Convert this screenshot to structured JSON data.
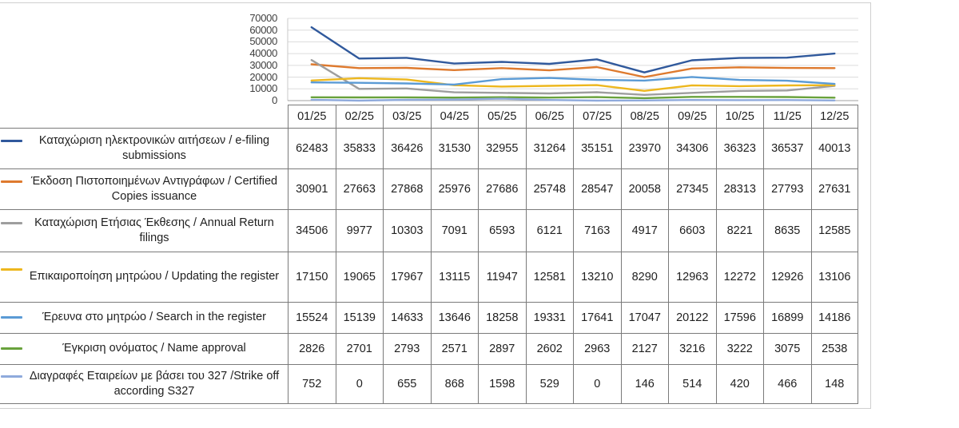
{
  "chart_data": {
    "type": "line",
    "title": "",
    "xlabel": "",
    "ylabel": "",
    "categories": [
      "01/25",
      "02/25",
      "03/25",
      "04/25",
      "05/25",
      "06/25",
      "07/25",
      "08/25",
      "09/25",
      "10/25",
      "11/25",
      "12/25"
    ],
    "ylim": [
      0,
      70000
    ],
    "y_tick_step": 10000,
    "y_tick_labels": [
      "70000",
      "60000",
      "50000",
      "40000",
      "30000",
      "20000",
      "10000",
      "0"
    ],
    "grid": true,
    "legend_position": "data-table-left-column",
    "series": [
      {
        "name": "Καταχώριση ηλεκτρονικών αιτήσεων / e-filing submissions",
        "color": "#30599C",
        "values": [
          62483,
          35833,
          36426,
          31530,
          32955,
          31264,
          35151,
          23970,
          34306,
          36323,
          36537,
          40013
        ]
      },
      {
        "name": "Έκδοση Πιστοποιημένων Αντιγράφων / Certified Copies issuance",
        "color": "#DE7A2E",
        "values": [
          30901,
          27663,
          27868,
          25976,
          27686,
          25748,
          28547,
          20058,
          27345,
          28313,
          27793,
          27631
        ]
      },
      {
        "name": "Καταχώριση Ετήσιας Έκθεσης / Annual Return filings",
        "color": "#9E9E9E",
        "values": [
          34506,
          9977,
          10303,
          7091,
          6593,
          6121,
          7163,
          4917,
          6603,
          8221,
          8635,
          12585
        ]
      },
      {
        "name": "Επικαιροποίηση μητρώου / Updating the register",
        "color": "#EDB71E",
        "values": [
          17150,
          19065,
          17967,
          13115,
          11947,
          12581,
          13210,
          8290,
          12963,
          12272,
          12926,
          13106
        ]
      },
      {
        "name": "Έρευνα στο μητρώο / Search in the register",
        "color": "#5B9BD5",
        "values": [
          15524,
          15139,
          14633,
          13646,
          18258,
          19331,
          17641,
          17047,
          20122,
          17596,
          16899,
          14186
        ]
      },
      {
        "name": "Έγκριση ονόματος / Name approval",
        "color": "#69A23C",
        "values": [
          2826,
          2701,
          2793,
          2571,
          2897,
          2602,
          2963,
          2127,
          3216,
          3222,
          3075,
          2538
        ]
      },
      {
        "name": "Διαγραφές Εταιρείων με βάσει του 327 /Strike off according S327",
        "color": "#8FAADC",
        "values": [
          752,
          0,
          655,
          868,
          1598,
          529,
          0,
          146,
          514,
          420,
          466,
          148
        ]
      }
    ]
  }
}
